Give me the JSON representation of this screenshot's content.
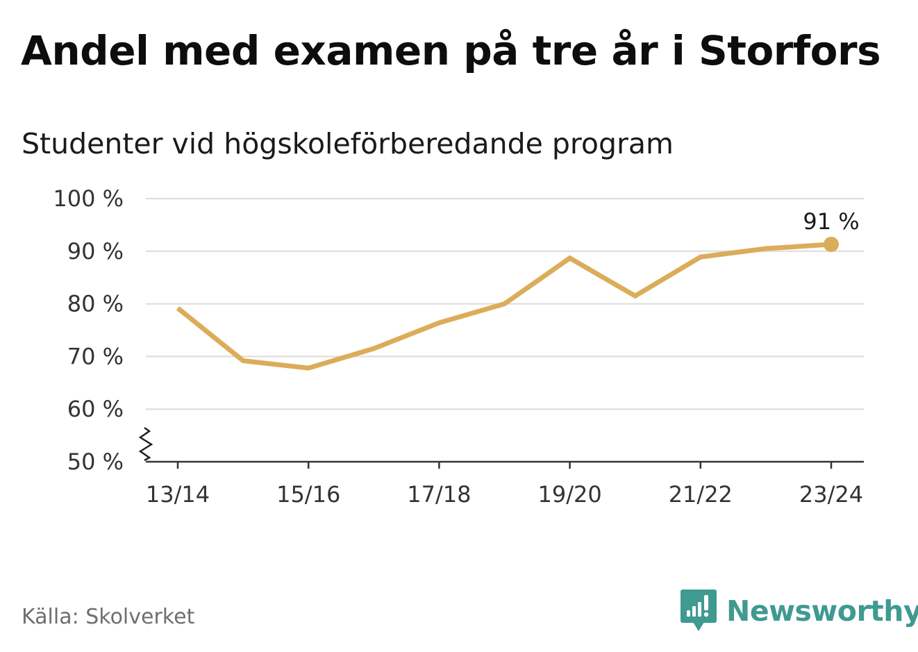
{
  "title": "Andel med examen på tre år i Storfors",
  "subtitle": "Studenter vid högskoleförberedande program",
  "source": "Källa: Skolverket",
  "brand": {
    "name": "Newsworthy",
    "icon": "newsworthy-logo-icon",
    "color": "#3f9a91"
  },
  "chart_data": {
    "type": "line",
    "categories": [
      "13/14",
      "14/15",
      "15/16",
      "16/17",
      "17/18",
      "18/19",
      "19/20",
      "20/21",
      "21/22",
      "22/23",
      "23/24"
    ],
    "x_tick_labels": [
      "13/14",
      "15/16",
      "17/18",
      "19/20",
      "21/22",
      "23/24"
    ],
    "series": [
      {
        "values": [
          79.2,
          69.2,
          67.8,
          71.5,
          76.4,
          80.0,
          88.7,
          81.5,
          88.9,
          90.5,
          91.3
        ],
        "color": "#dbad5a"
      }
    ],
    "ylim": [
      50,
      100
    ],
    "y_ticks": [
      50,
      60,
      70,
      80,
      90,
      100
    ],
    "y_tick_labels": [
      "50 %",
      "60 %",
      "70 %",
      "80 %",
      "90 %",
      "100 %"
    ],
    "y_axis_break": true,
    "grid": true,
    "end_label": "91 %",
    "title": "Andel med examen på tre år i Storfors",
    "subtitle": "Studenter vid högskoleförberedande program"
  }
}
